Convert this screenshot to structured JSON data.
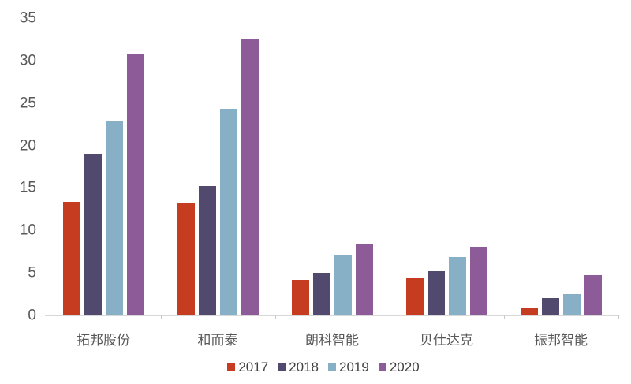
{
  "chart_data": {
    "type": "bar",
    "title": "",
    "xlabel": "",
    "ylabel": "",
    "categories": [
      "拓邦股份",
      "和而泰",
      "朗科智能",
      "贝仕达克",
      "振邦智能"
    ],
    "series": [
      {
        "name": "2017",
        "color": "#c63c20",
        "values": [
          13.4,
          13.3,
          4.2,
          4.4,
          0.9
        ]
      },
      {
        "name": "2018",
        "color": "#514a6e",
        "values": [
          19.0,
          15.2,
          5.0,
          5.2,
          2.0
        ]
      },
      {
        "name": "2019",
        "color": "#87b0c7",
        "values": [
          22.9,
          24.3,
          7.1,
          6.9,
          2.5
        ]
      },
      {
        "name": "2020",
        "color": "#8d5b98",
        "values": [
          30.7,
          32.5,
          8.4,
          8.1,
          4.7
        ]
      }
    ],
    "ylim": [
      0,
      35
    ],
    "yticks": [
      0,
      5,
      10,
      15,
      20,
      25,
      30,
      35
    ],
    "grid": false,
    "legend_position": "bottom"
  },
  "colors": {
    "background": "#ffffff",
    "axis_label": "#595959",
    "legend_text": "#404040",
    "axis_line": "#d8d8d8"
  }
}
